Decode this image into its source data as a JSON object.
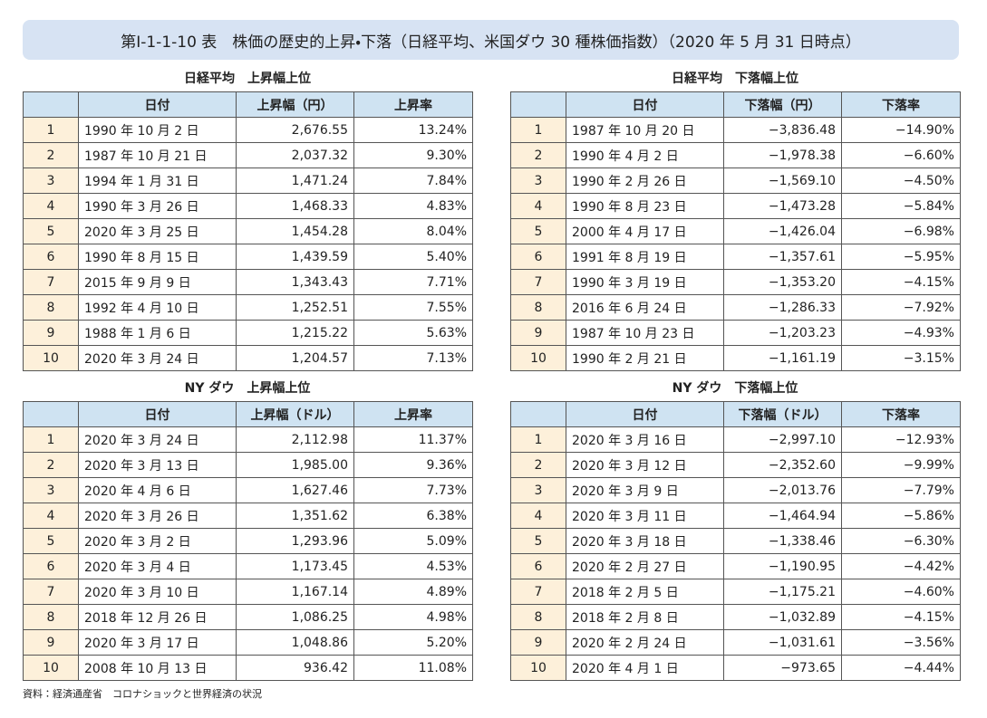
{
  "title": "第Ⅰ-1-1-10 表　株価の歴史的上昇・下落（日経平均、米国ダウ 30 種株価指数）（2020 年 5 月 31 日時点）",
  "tables": [
    {
      "caption": "日経平均　上昇幅上位",
      "headers": [
        "日付",
        "上昇幅（円）",
        "上昇率"
      ],
      "rows": [
        [
          "1",
          "1990 年 10 月 2 日",
          "2,676.55",
          "13.24%"
        ],
        [
          "2",
          "1987 年 10 月 21 日",
          "2,037.32",
          "9.30%"
        ],
        [
          "3",
          "1994 年 1 月 31 日",
          "1,471.24",
          "7.84%"
        ],
        [
          "4",
          "1990 年 3 月 26 日",
          "1,468.33",
          "4.83%"
        ],
        [
          "5",
          "2020 年 3 月 25 日",
          "1,454.28",
          "8.04%"
        ],
        [
          "6",
          "1990 年 8 月 15 日",
          "1,439.59",
          "5.40%"
        ],
        [
          "7",
          "2015 年 9 月 9 日",
          "1,343.43",
          "7.71%"
        ],
        [
          "8",
          "1992 年 4 月 10 日",
          "1,252.51",
          "7.55%"
        ],
        [
          "9",
          "1988 年 1 月 6 日",
          "1,215.22",
          "5.63%"
        ],
        [
          "10",
          "2020 年 3 月 24 日",
          "1,204.57",
          "7.13%"
        ]
      ]
    },
    {
      "caption": "日経平均　下落幅上位",
      "headers": [
        "日付",
        "下落幅（円）",
        "下落率"
      ],
      "rows": [
        [
          "1",
          "1987 年 10 月 20 日",
          "−3,836.48",
          "−14.90%"
        ],
        [
          "2",
          "1990 年 4 月 2 日",
          "−1,978.38",
          "−6.60%"
        ],
        [
          "3",
          "1990 年 2 月 26 日",
          "−1,569.10",
          "−4.50%"
        ],
        [
          "4",
          "1990 年 8 月 23 日",
          "−1,473.28",
          "−5.84%"
        ],
        [
          "5",
          "2000 年 4 月 17 日",
          "−1,426.04",
          "−6.98%"
        ],
        [
          "6",
          "1991 年 8 月 19 日",
          "−1,357.61",
          "−5.95%"
        ],
        [
          "7",
          "1990 年 3 月 19 日",
          "−1,353.20",
          "−4.15%"
        ],
        [
          "8",
          "2016 年 6 月 24 日",
          "−1,286.33",
          "−7.92%"
        ],
        [
          "9",
          "1987 年 10 月 23 日",
          "−1,203.23",
          "−4.93%"
        ],
        [
          "10",
          "1990 年 2 月 21 日",
          "−1,161.19",
          "−3.15%"
        ]
      ]
    },
    {
      "caption": "NY ダウ　上昇幅上位",
      "headers": [
        "日付",
        "上昇幅（ドル）",
        "上昇率"
      ],
      "rows": [
        [
          "1",
          "2020 年 3 月 24 日",
          "2,112.98",
          "11.37%"
        ],
        [
          "2",
          "2020 年 3 月 13 日",
          "1,985.00",
          "9.36%"
        ],
        [
          "3",
          "2020 年 4 月 6 日",
          "1,627.46",
          "7.73%"
        ],
        [
          "4",
          "2020 年 3 月 26 日",
          "1,351.62",
          "6.38%"
        ],
        [
          "5",
          "2020 年 3 月 2 日",
          "1,293.96",
          "5.09%"
        ],
        [
          "6",
          "2020 年 3 月 4 日",
          "1,173.45",
          "4.53%"
        ],
        [
          "7",
          "2020 年 3 月 10 日",
          "1,167.14",
          "4.89%"
        ],
        [
          "8",
          "2018 年 12 月 26 日",
          "1,086.25",
          "4.98%"
        ],
        [
          "9",
          "2020 年 3 月 17 日",
          "1,048.86",
          "5.20%"
        ],
        [
          "10",
          "2008 年 10 月 13 日",
          "936.42",
          "11.08%"
        ]
      ]
    },
    {
      "caption": "NY ダウ　下落幅上位",
      "headers": [
        "日付",
        "下落幅（ドル）",
        "下落率"
      ],
      "rows": [
        [
          "1",
          "2020 年 3 月 16 日",
          "−2,997.10",
          "−12.93%"
        ],
        [
          "2",
          "2020 年 3 月 12 日",
          "−2,352.60",
          "−9.99%"
        ],
        [
          "3",
          "2020 年 3 月 9 日",
          "−2,013.76",
          "−7.79%"
        ],
        [
          "4",
          "2020 年 3 月 11 日",
          "−1,464.94",
          "−5.86%"
        ],
        [
          "5",
          "2020 年 3 月 18 日",
          "−1,338.46",
          "−6.30%"
        ],
        [
          "6",
          "2020 年 2 月 27 日",
          "−1,190.95",
          "−4.42%"
        ],
        [
          "7",
          "2018 年 2 月 5 日",
          "−1,175.21",
          "−4.60%"
        ],
        [
          "8",
          "2018 年 2 月 8 日",
          "−1,032.89",
          "−4.15%"
        ],
        [
          "9",
          "2020 年 2 月 24 日",
          "−1,031.61",
          "−3.56%"
        ],
        [
          "10",
          "2020 年 4 月 1 日",
          "−973.65",
          "−4.44%"
        ]
      ]
    }
  ],
  "source": "資料：経済通産省　コロナショックと世界経済の状況"
}
